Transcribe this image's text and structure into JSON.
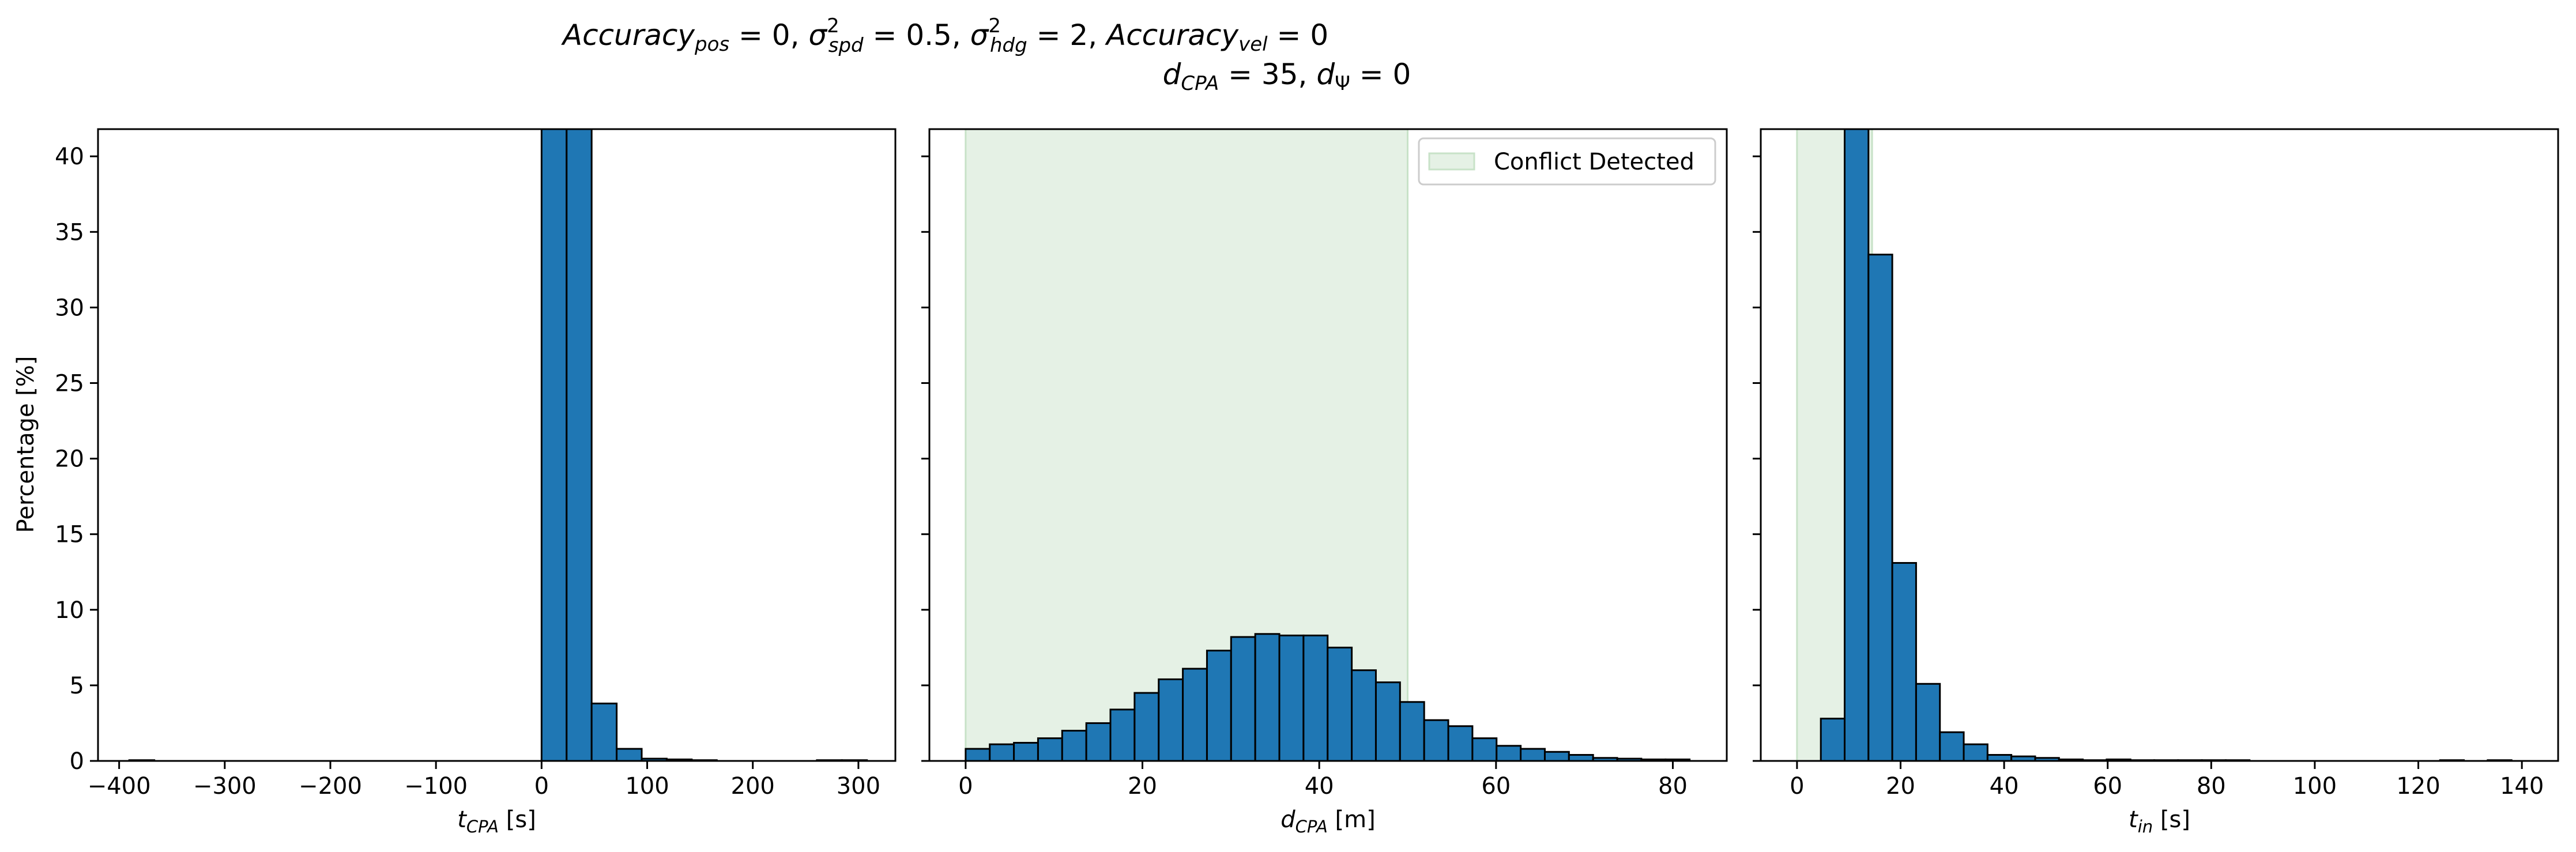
{
  "figure": {
    "title_line1": {
      "a_main": "Accuracy",
      "a_sub": "pos",
      "a_val": " = 0, ",
      "b_main": "σ",
      "b_sup": "2",
      "b_sub": "spd",
      "b_val": " = 0.5, ",
      "c_main": "σ",
      "c_sup": "2",
      "c_sub": "hdg",
      "c_val": " = 2, ",
      "d_main": "Accuracy",
      "d_sub": "vel",
      "d_val": " = 0"
    },
    "title_line2": {
      "a_main": "d",
      "a_sub": "CPA",
      "a_val": " = 35, ",
      "b_main": "d",
      "b_sub": "Ψ",
      "b_val": " = 0"
    },
    "ylabel": "Percentage [%]",
    "colors": {
      "bar": "#1f77b4",
      "edge": "#000000",
      "conflict": "#e5f1e5",
      "conflict_edge": "#c8e2c8"
    }
  },
  "chart_data": [
    {
      "type": "bar",
      "xlabel_main": "t",
      "xlabel_sub": "CPA",
      "xlabel_unit": " [s]",
      "xlim": [
        -420,
        335
      ],
      "ylim": [
        0,
        41.8
      ],
      "xticks": [
        "-400",
        "-300",
        "-200",
        "-100",
        "0",
        "100",
        "200",
        "300"
      ],
      "xtick_values": [
        -400,
        -300,
        -200,
        -100,
        0,
        100,
        200,
        300
      ],
      "yticks": [
        "0",
        "5",
        "10",
        "15",
        "20",
        "25",
        "30",
        "35",
        "40"
      ],
      "ytick_values": [
        0,
        5,
        10,
        15,
        20,
        25,
        30,
        35,
        40
      ],
      "bin_width": 23.7,
      "bins_left": [
        -390.4,
        0,
        23.7,
        47.4,
        71.1,
        94.8,
        118.5,
        142.2,
        260.7,
        284.4
      ],
      "values": [
        0.05,
        45,
        44,
        3.8,
        0.8,
        0.15,
        0.1,
        0.05,
        0.05,
        0.05
      ],
      "conflict_range": null
    },
    {
      "type": "bar",
      "xlabel_main": "d",
      "xlabel_sub": "CPA",
      "xlabel_unit": " [m]",
      "xlim": [
        -4.1,
        86.1
      ],
      "ylim": [
        0,
        41.8
      ],
      "xticks": [
        "0",
        "20",
        "40",
        "60",
        "80"
      ],
      "xtick_values": [
        0,
        20,
        40,
        60,
        80
      ],
      "yticks": [
        "0",
        "5",
        "10",
        "15",
        "20",
        "25",
        "30",
        "35",
        "40"
      ],
      "ytick_values": [
        0,
        5,
        10,
        15,
        20,
        25,
        30,
        35,
        40
      ],
      "bin_width": 2.73,
      "bins_left": [
        0,
        2.73,
        5.46,
        8.19,
        10.92,
        13.65,
        16.38,
        19.11,
        21.84,
        24.57,
        27.3,
        30.03,
        32.76,
        35.49,
        38.22,
        40.95,
        43.68,
        46.41,
        49.14,
        51.87,
        54.6,
        57.33,
        60.06,
        62.79,
        65.52,
        68.25,
        70.98,
        73.71,
        76.44,
        79.17
      ],
      "values": [
        0.8,
        1.1,
        1.2,
        1.5,
        2.0,
        2.5,
        3.4,
        4.5,
        5.4,
        6.1,
        7.3,
        8.2,
        8.4,
        8.3,
        8.3,
        7.5,
        6.0,
        5.2,
        3.9,
        2.7,
        2.3,
        1.5,
        1.0,
        0.8,
        0.6,
        0.4,
        0.2,
        0.15,
        0.1,
        0.1
      ],
      "conflict_range": [
        0,
        50
      ],
      "legend": "Conflict Detected"
    },
    {
      "type": "bar",
      "xlabel_main": "t",
      "xlabel_sub": "in",
      "xlabel_unit": " [s]",
      "xlim": [
        -7,
        147
      ],
      "ylim": [
        0,
        41.8
      ],
      "xticks": [
        "0",
        "20",
        "40",
        "60",
        "80",
        "100",
        "120",
        "140"
      ],
      "xtick_values": [
        0,
        20,
        40,
        60,
        80,
        100,
        120,
        140
      ],
      "yticks": [
        "0",
        "5",
        "10",
        "15",
        "20",
        "25",
        "30",
        "35",
        "40"
      ],
      "ytick_values": [
        0,
        5,
        10,
        15,
        20,
        25,
        30,
        35,
        40
      ],
      "bin_width": 4.6,
      "bins_left": [
        4.6,
        9.2,
        13.8,
        18.4,
        23.0,
        27.6,
        32.2,
        36.8,
        41.4,
        46.0,
        50.6,
        55.2,
        59.8,
        64.4,
        69.0,
        73.6,
        78.2,
        82.8,
        124.2,
        133.4
      ],
      "values": [
        2.8,
        43,
        33.5,
        13.1,
        5.1,
        1.9,
        1.1,
        0.4,
        0.3,
        0.2,
        0.1,
        0.05,
        0.1,
        0.05,
        0.05,
        0.05,
        0.05,
        0.05,
        0.05,
        0.05
      ],
      "conflict_range": [
        0,
        14.5
      ]
    }
  ]
}
